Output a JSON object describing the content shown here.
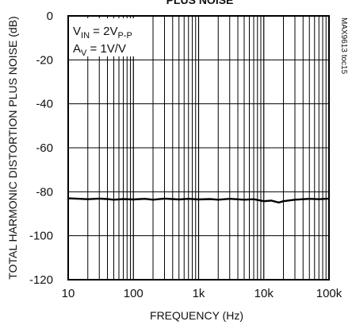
{
  "chart_data": {
    "type": "line",
    "title": "PLUS NOISE",
    "xlabel": "FREQUENCY (Hz)",
    "ylabel": "TOTAL HARMONIC DISTORTION PLUS NOISE (dB)",
    "x_scale": "log",
    "xlim": [
      10,
      100000
    ],
    "ylim": [
      -120,
      0
    ],
    "x_ticks": [
      10,
      100,
      1000,
      10000,
      100000
    ],
    "x_tick_labels": [
      "10",
      "100",
      "1k",
      "10k",
      "100k"
    ],
    "y_ticks": [
      0,
      -20,
      -40,
      -60,
      -80,
      -100,
      -120
    ],
    "y_tick_labels": [
      "0",
      "-20",
      "-40",
      "-60",
      "-80",
      "-100",
      "-120"
    ],
    "grid": true,
    "annotations": {
      "vin_main": "V",
      "vin_sub": "IN",
      "vin_mid": " = 2V",
      "vin_sub2": "P-P",
      "av_main": "A",
      "av_sub": "V",
      "av_rest": " = 1V/V",
      "code": "MAX9613 toc15"
    },
    "series": [
      {
        "color": "#000000",
        "points": [
          [
            10,
            -83.0
          ],
          [
            15,
            -83.2
          ],
          [
            20,
            -83.4
          ],
          [
            30,
            -83.1
          ],
          [
            40,
            -83.3
          ],
          [
            50,
            -83.6
          ],
          [
            70,
            -83.3
          ],
          [
            100,
            -83.5
          ],
          [
            150,
            -83.2
          ],
          [
            200,
            -83.6
          ],
          [
            300,
            -83.1
          ],
          [
            500,
            -83.5
          ],
          [
            700,
            -83.2
          ],
          [
            1000,
            -83.5
          ],
          [
            1500,
            -83.3
          ],
          [
            2000,
            -83.6
          ],
          [
            3000,
            -83.2
          ],
          [
            5000,
            -83.6
          ],
          [
            7000,
            -83.4
          ],
          [
            10000,
            -84.3
          ],
          [
            13000,
            -84.0
          ],
          [
            17000,
            -84.9
          ],
          [
            20000,
            -84.3
          ],
          [
            30000,
            -83.6
          ],
          [
            50000,
            -83.2
          ],
          [
            70000,
            -83.4
          ],
          [
            100000,
            -83.1
          ]
        ]
      }
    ]
  }
}
